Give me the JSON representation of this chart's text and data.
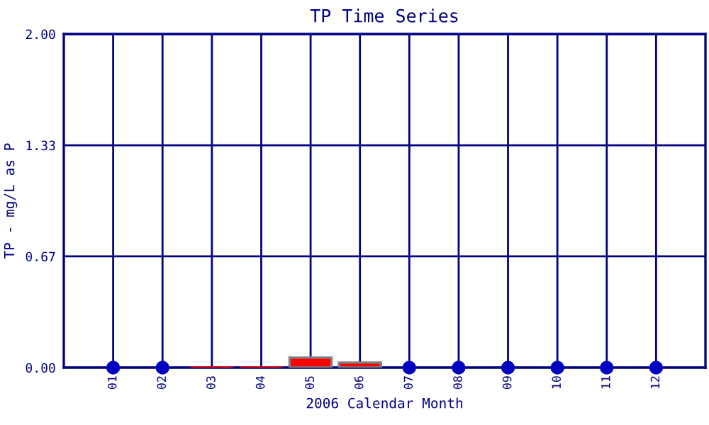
{
  "chart_data": {
    "type": "bar",
    "title": "TP Time Series",
    "xlabel": "2006 Calendar Month",
    "ylabel": "TP - mg/L as P",
    "categories": [
      "01",
      "02",
      "03",
      "04",
      "05",
      "06",
      "07",
      "08",
      "09",
      "10",
      "11",
      "12"
    ],
    "series": [
      {
        "color": "#ff0000",
        "values": [
          null,
          null,
          0,
          0,
          0.06,
          0.03,
          null,
          null,
          null,
          null,
          null,
          null
        ]
      },
      {
        "type": "scatter",
        "color": "#0000c0",
        "values": [
          0,
          0,
          null,
          null,
          null,
          null,
          0,
          0,
          0,
          0,
          0,
          0
        ]
      }
    ],
    "ylim": [
      0,
      2
    ],
    "yticks": [
      {
        "value": 0,
        "label": "0.00"
      },
      {
        "value": 0.667,
        "label": "0.67"
      },
      {
        "value": 1.333,
        "label": "1.33"
      },
      {
        "value": 2,
        "label": "2.00"
      }
    ],
    "grid": true,
    "marker": "circle",
    "legend": false
  }
}
